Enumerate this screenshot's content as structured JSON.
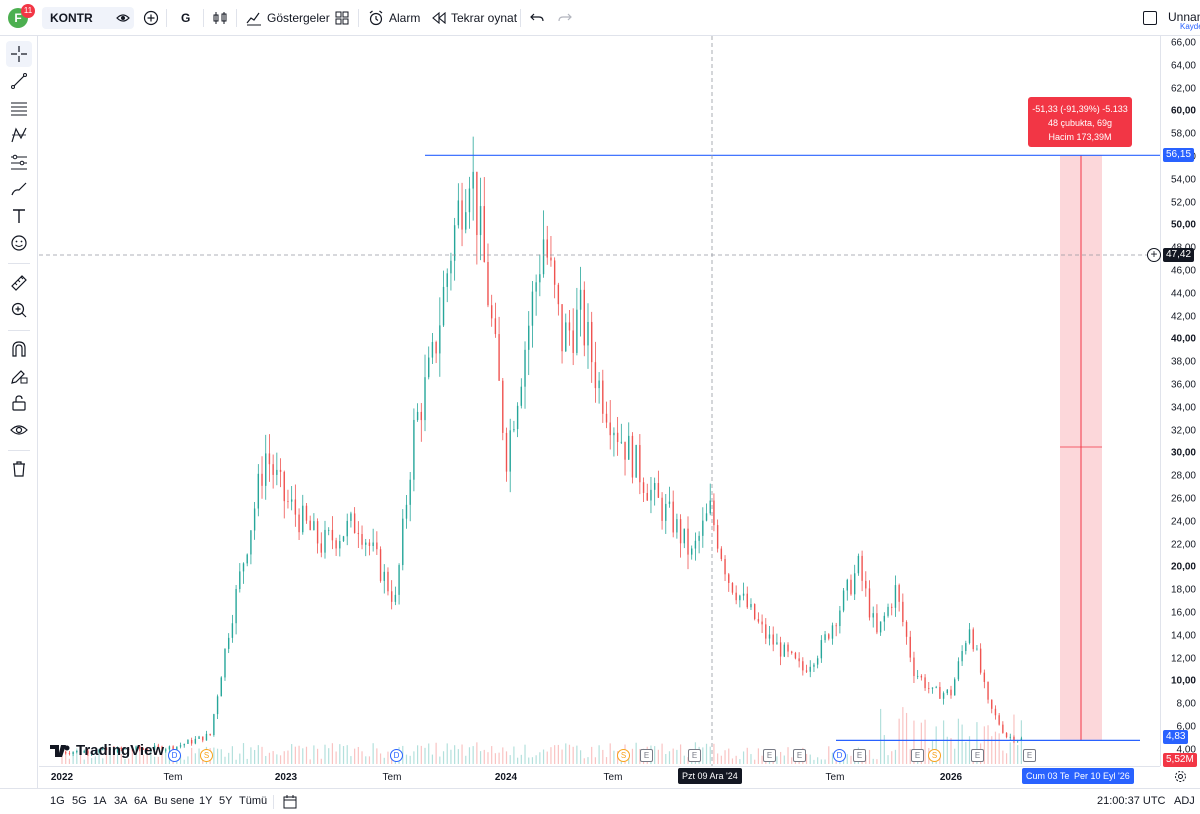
{
  "header": {
    "avatar_letter": "F",
    "notification_count": "11",
    "symbol": "KONTR",
    "interval": "G",
    "indicators_label": "Göstergeler",
    "alarm_label": "Alarm",
    "replay_label": "Tekrar oynat",
    "layout_name": "Unnam",
    "save_label": "Kayde"
  },
  "price_axis": {
    "ticks": [
      "66,00",
      "64,00",
      "62,00",
      "60,00",
      "58,00",
      "56,00",
      "54,00",
      "52,00",
      "50,00",
      "48,00",
      "46,00",
      "44,00",
      "42,00",
      "40,00",
      "38,00",
      "36,00",
      "34,00",
      "32,00",
      "30,00",
      "28,00",
      "26,00",
      "24,00",
      "22,00",
      "20,00",
      "18,00",
      "16,00",
      "14,00",
      "12,00",
      "10,00",
      "8,00",
      "6,00",
      "4,00"
    ],
    "bold_ticks": [
      "60,00",
      "50,00",
      "40,00",
      "30,00",
      "20,00",
      "10,00"
    ],
    "crosshair_price": "47,42",
    "top_line_price": "56,15",
    "last_price": "4,83",
    "volume_value": "5,52M"
  },
  "time_axis": {
    "labels": [
      "2022",
      "Tem",
      "2023",
      "Tem",
      "2024",
      "Tem",
      "Tem",
      "2026"
    ],
    "bold_labels": [
      "2022",
      "2023",
      "2024",
      "2026"
    ],
    "crosshair_date": "Pzt 09 Ara '24",
    "range_start_date": "Cum 03 Te",
    "range_end_date": "Per 10 Eyl '26"
  },
  "measure_tooltip": {
    "line1": "-51,33 (-91,39%) -5.133",
    "line2": "48 çubukta, 69g",
    "line3": "Hacim 173,39M"
  },
  "logo_text": "TradingView",
  "event_markers": [
    "D",
    "S",
    "D",
    "S",
    "E",
    "E",
    "E",
    "E",
    "D",
    "E",
    "S",
    "E",
    "E",
    "E"
  ],
  "bottom": {
    "ranges": [
      "1G",
      "5G",
      "1A",
      "3A",
      "6A",
      "Bu sene",
      "1Y",
      "5Y",
      "Tümü"
    ],
    "clock": "21:00:37 UTC",
    "adj": "ADJ"
  },
  "colors": {
    "up": "#26a69a",
    "down": "#ef5350",
    "accent": "#2962ff",
    "measure_fill": "#f23645"
  },
  "chart_data": {
    "type": "candlestick",
    "symbol": "KONTR",
    "ylim": [
      4,
      66
    ],
    "x": [
      "2022-01",
      "2022-04",
      "2022-07",
      "2022-09",
      "2022-10",
      "2022-12",
      "2023-01",
      "2023-03",
      "2023-05",
      "2023-07",
      "2023-08",
      "2023-09",
      "2023-10",
      "2023-11",
      "2023-12",
      "2024-01",
      "2024-03",
      "2024-04",
      "2024-05",
      "2024-06",
      "2024-07",
      "2024-09",
      "2024-10",
      "2024-11",
      "2024-12",
      "2025-01",
      "2025-03",
      "2025-05",
      "2025-06",
      "2025-08",
      "2025-09",
      "2025-10",
      "2025-11",
      "2025-12",
      "2026-01",
      "2026-02",
      "2026-03",
      "2026-04",
      "2026-05"
    ],
    "close": [
      3.8,
      4.0,
      4.2,
      5.3,
      14.5,
      30.0,
      26.0,
      22.0,
      24.0,
      17.0,
      32.0,
      38.0,
      48.0,
      56.0,
      44.0,
      30.0,
      49.0,
      40.0,
      42.0,
      36.0,
      32.0,
      26.0,
      24.0,
      21.0,
      25.0,
      19.0,
      14.0,
      11.0,
      13.0,
      20.0,
      14.0,
      18.0,
      11.0,
      9.0,
      9.0,
      15.0,
      8.0,
      5.2,
      4.83
    ],
    "horizontal_lines": [
      56.15,
      4.83
    ],
    "measure": {
      "change": -51.33,
      "change_pct": -91.39,
      "bars": 48,
      "days": 69,
      "volume": "173,39M"
    }
  }
}
